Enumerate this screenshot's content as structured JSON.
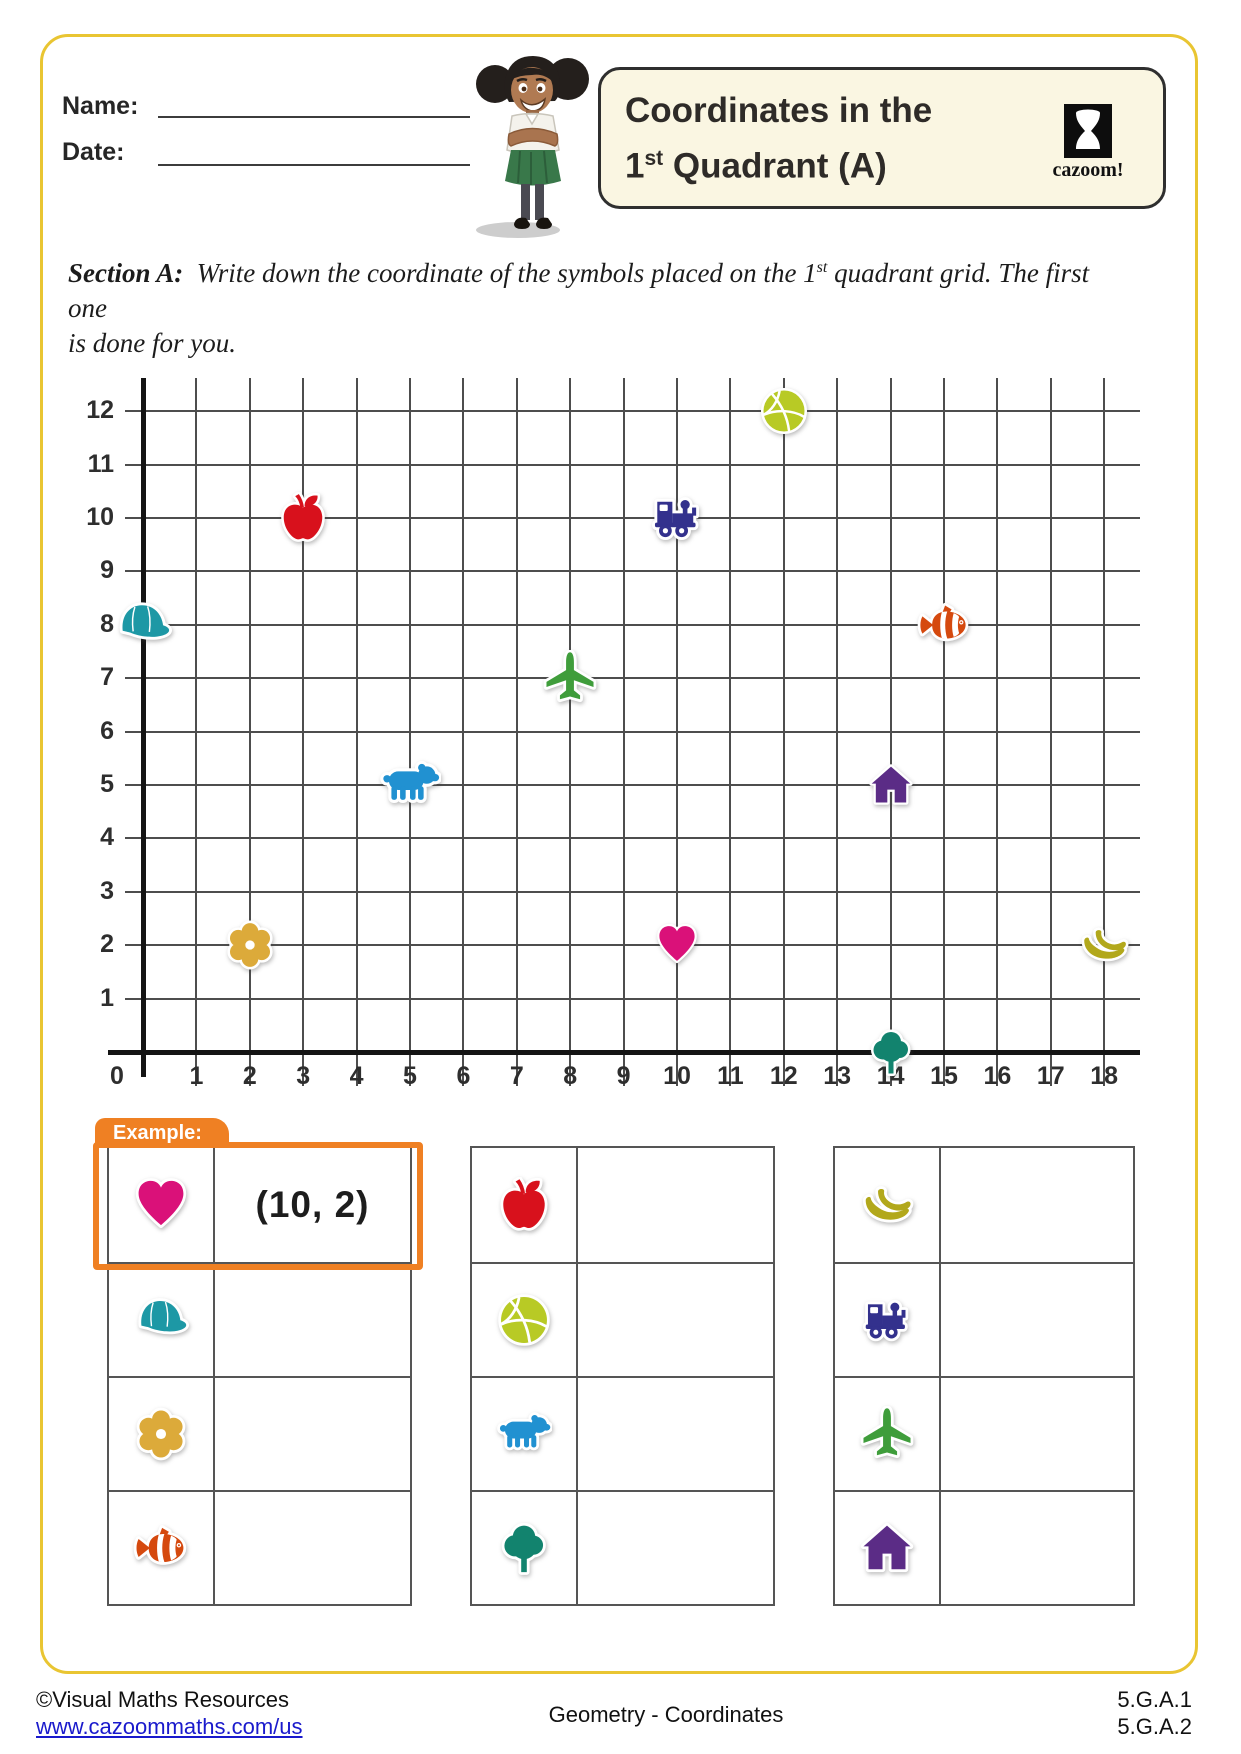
{
  "header": {
    "name_label": "Name:",
    "date_label": "Date:",
    "title_line1": "Coordinates in the",
    "title_line2_num": "1",
    "title_line2_sup": "st",
    "title_line2_rest": " Quadrant (A)",
    "logo_text": "cazoom!"
  },
  "section_a": {
    "label": "Section A:",
    "line1_before": "Write down the coordinate of the symbols placed on the 1",
    "line1_sup": "st",
    "line1_after": " quadrant grid. The first one",
    "line2": "is done for you."
  },
  "chart_data": {
    "type": "scatter",
    "title": "Coordinates in the 1st Quadrant (A)",
    "xlabel": "",
    "ylabel": "",
    "xlim": [
      0,
      18
    ],
    "ylim": [
      0,
      12
    ],
    "grid": true,
    "x_tick_labels": [
      "0",
      "1",
      "2",
      "3",
      "4",
      "5",
      "6",
      "7",
      "8",
      "9",
      "10",
      "11",
      "12",
      "13",
      "14",
      "15",
      "16",
      "17",
      "18"
    ],
    "y_tick_labels": [
      "1",
      "2",
      "3",
      "4",
      "5",
      "6",
      "7",
      "8",
      "9",
      "10",
      "11",
      "12"
    ],
    "symbols": [
      {
        "name": "apple",
        "x": 3,
        "y": 10
      },
      {
        "name": "basketball",
        "x": 12,
        "y": 12
      },
      {
        "name": "train",
        "x": 10,
        "y": 10
      },
      {
        "name": "cap",
        "x": 0,
        "y": 8
      },
      {
        "name": "fish",
        "x": 15,
        "y": 8
      },
      {
        "name": "plane",
        "x": 8,
        "y": 7
      },
      {
        "name": "bear",
        "x": 5,
        "y": 5
      },
      {
        "name": "house",
        "x": 14,
        "y": 5
      },
      {
        "name": "flower",
        "x": 2,
        "y": 2
      },
      {
        "name": "heart",
        "x": 10,
        "y": 2
      },
      {
        "name": "banana",
        "x": 18,
        "y": 2
      },
      {
        "name": "tree",
        "x": 14,
        "y": 0
      }
    ]
  },
  "icons": {
    "colors": {
      "apple": "#d8111c",
      "basketball": "#b8ca25",
      "train": "#33318d",
      "cap": "#1d98a5",
      "fish": "#d5490e",
      "plane": "#3f9d3b",
      "bear": "#2191d1",
      "house": "#5b2c86",
      "flower": "#dcaa3a",
      "heart": "#da1179",
      "banana": "#b2a81b",
      "tree": "#12836e"
    },
    "accent_orange": "#ef8023",
    "frame_yellow": "#e9c532"
  },
  "example": {
    "tab_label": "Example:",
    "answer": "(10, 2)"
  },
  "tables": [
    {
      "rows": [
        {
          "symbol": "heart",
          "answer": "(10, 2)"
        },
        {
          "symbol": "cap",
          "answer": ""
        },
        {
          "symbol": "flower",
          "answer": ""
        },
        {
          "symbol": "fish",
          "answer": ""
        }
      ]
    },
    {
      "rows": [
        {
          "symbol": "apple",
          "answer": ""
        },
        {
          "symbol": "basketball",
          "answer": ""
        },
        {
          "symbol": "bear",
          "answer": ""
        },
        {
          "symbol": "tree",
          "answer": ""
        }
      ]
    },
    {
      "rows": [
        {
          "symbol": "banana",
          "answer": ""
        },
        {
          "symbol": "train",
          "answer": ""
        },
        {
          "symbol": "plane",
          "answer": ""
        },
        {
          "symbol": "house",
          "answer": ""
        }
      ]
    }
  ],
  "footer": {
    "copyright": "©Visual Maths Resources",
    "url": "www.cazoommaths.com/us",
    "center": "Geometry - Coordinates",
    "standard1": "5.G.A.1",
    "standard2": "5.G.A.2"
  }
}
